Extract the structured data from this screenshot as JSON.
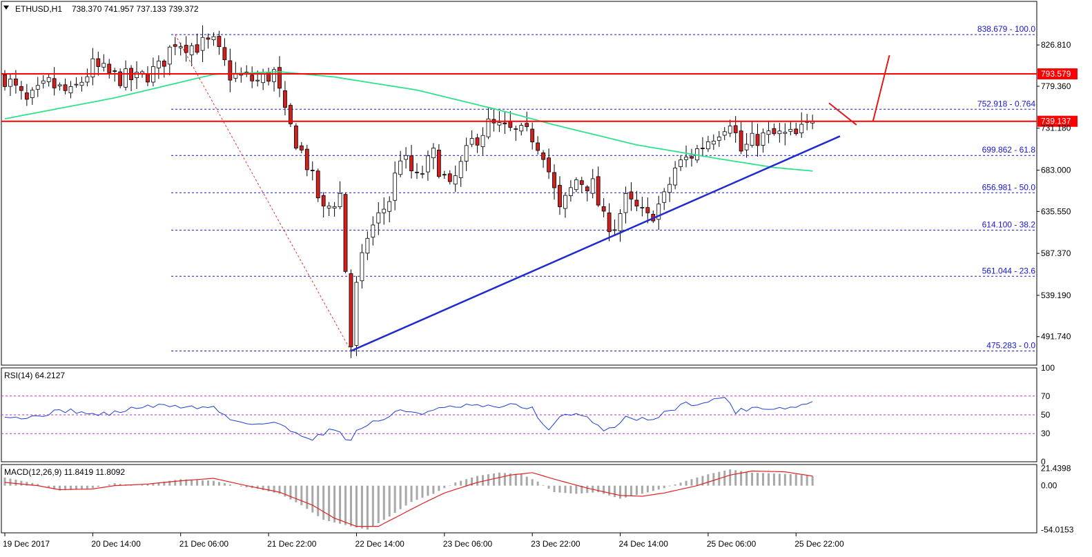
{
  "header": {
    "symbol": "ETHUSD,H1",
    "ohlc": "738.370 741.957 737.133 739.372",
    "menu_icon": "triangle-down-icon"
  },
  "colors": {
    "bull": "#ffffff",
    "bear": "#d41f1f",
    "wick": "#000000",
    "ma": "#2ee28a",
    "trendline": "#1f2bd1",
    "resistance": "#ff0000",
    "fib": "#1515d6",
    "rsi": "#1c3fd6",
    "macd_signal": "#e02020",
    "macd_hist": "#a8a8a8",
    "label_bg": "#ff0000"
  },
  "price_axis": {
    "ticks": [
      {
        "value": 826.81,
        "label": "826.810"
      },
      {
        "value": 779.36,
        "label": "779.360"
      },
      {
        "value": 731.18,
        "label": "731.180"
      },
      {
        "value": 683.0,
        "label": "683.000"
      },
      {
        "value": 635.55,
        "label": "635.550"
      },
      {
        "value": 587.37,
        "label": "587.370"
      },
      {
        "value": 539.19,
        "label": "539.190"
      },
      {
        "value": 491.74,
        "label": "491.740"
      }
    ],
    "range": [
      459,
      861
    ]
  },
  "fib_levels": [
    {
      "price": 838.679,
      "label": "838.679 - 100.0"
    },
    {
      "price": 752.918,
      "label": "752.918 - 0.764"
    },
    {
      "price": 699.862,
      "label": "699.862 - 61.8"
    },
    {
      "price": 656.981,
      "label": "656.981 - 50.0"
    },
    {
      "price": 614.1,
      "label": "614.100 - 38.2"
    },
    {
      "price": 561.044,
      "label": "561.044 - 23.6"
    },
    {
      "price": 475.283,
      "label": "475.283 - 0.0"
    }
  ],
  "resistance_lines": [
    {
      "price": 793.579,
      "label": "793.579"
    },
    {
      "price": 739.137,
      "label": "739.137"
    }
  ],
  "time_axis": {
    "labels": [
      "19 Dec 2017",
      "20 Dec 14:00",
      "21 Dec 06:00",
      "21 Dec 22:00",
      "22 Dec 14:00",
      "23 Dec 06:00",
      "23 Dec 22:00",
      "24 Dec 14:00",
      "25 Dec 06:00",
      "25 Dec 22:00"
    ],
    "label_bars": [
      0,
      16,
      32,
      48,
      64,
      80,
      96,
      112,
      128,
      144
    ]
  },
  "chart_data": [
    {
      "type": "candlestick",
      "title": "ETHUSD,H1",
      "bars_count": 148,
      "anchors": [
        [
          0,
          790
        ],
        [
          4,
          760
        ],
        [
          8,
          782
        ],
        [
          12,
          770
        ],
        [
          16,
          802
        ],
        [
          20,
          790
        ],
        [
          24,
          787
        ],
        [
          28,
          800
        ],
        [
          31,
          832
        ],
        [
          34,
          826
        ],
        [
          38,
          828
        ],
        [
          41,
          793
        ],
        [
          46,
          785
        ],
        [
          49,
          795
        ],
        [
          51,
          745
        ],
        [
          55,
          690
        ],
        [
          58,
          635
        ],
        [
          61,
          655
        ],
        [
          63,
          482
        ],
        [
          64,
          548
        ],
        [
          66,
          608
        ],
        [
          70,
          650
        ],
        [
          72,
          700
        ],
        [
          75,
          672
        ],
        [
          78,
          700
        ],
        [
          81,
          660
        ],
        [
          85,
          715
        ],
        [
          88,
          735
        ],
        [
          92,
          727
        ],
        [
          96,
          722
        ],
        [
          98,
          705
        ],
        [
          101,
          635
        ],
        [
          104,
          672
        ],
        [
          107,
          665
        ],
        [
          109,
          625
        ],
        [
          111,
          620
        ],
        [
          113,
          648
        ],
        [
          117,
          627
        ],
        [
          120,
          650
        ],
        [
          122,
          685
        ],
        [
          126,
          706
        ],
        [
          130,
          730
        ],
        [
          132,
          742
        ],
        [
          134,
          705
        ],
        [
          137,
          720
        ],
        [
          140,
          723
        ],
        [
          144,
          722
        ],
        [
          147,
          739
        ]
      ],
      "moving_average": {
        "name": "",
        "points": [
          [
            0,
            742
          ],
          [
            20,
            766
          ],
          [
            38,
            793
          ],
          [
            50,
            796
          ],
          [
            60,
            790
          ],
          [
            75,
            775
          ],
          [
            90,
            752
          ],
          [
            100,
            735
          ],
          [
            115,
            712
          ],
          [
            130,
            696
          ],
          [
            140,
            686
          ],
          [
            147,
            682
          ]
        ]
      },
      "trendline": {
        "from": [
          63,
          475.283
        ],
        "to": [
          152,
          722
        ]
      },
      "dashed_swing": {
        "from": [
          31,
          838.679
        ],
        "to": [
          63,
          475.283
        ]
      },
      "projection": [
        {
          "from": [
            150,
            760
          ],
          "to": [
            155,
            735
          ]
        },
        {
          "from": [
            158,
            739
          ],
          "to": [
            161,
            815
          ]
        }
      ]
    },
    {
      "type": "line",
      "title": "RSI(14) 64.2127",
      "ylim": [
        0,
        100
      ],
      "ticks": [
        {
          "value": 100,
          "label": "100"
        },
        {
          "value": 70,
          "label": "70"
        },
        {
          "value": 50,
          "label": "50"
        },
        {
          "value": 30,
          "label": "30"
        },
        {
          "value": 0,
          "label": "0"
        }
      ],
      "levels": [
        70,
        50,
        30
      ],
      "anchors": [
        [
          0,
          50
        ],
        [
          4,
          46
        ],
        [
          8,
          52
        ],
        [
          12,
          55
        ],
        [
          16,
          50
        ],
        [
          20,
          52
        ],
        [
          24,
          58
        ],
        [
          30,
          60
        ],
        [
          34,
          58
        ],
        [
          38,
          58
        ],
        [
          41,
          45
        ],
        [
          46,
          40
        ],
        [
          49,
          42
        ],
        [
          52,
          33
        ],
        [
          56,
          25
        ],
        [
          58,
          30
        ],
        [
          60,
          36
        ],
        [
          63,
          21
        ],
        [
          64,
          33
        ],
        [
          66,
          40
        ],
        [
          70,
          48
        ],
        [
          72,
          55
        ],
        [
          76,
          52
        ],
        [
          80,
          57
        ],
        [
          85,
          60
        ],
        [
          88,
          58
        ],
        [
          92,
          60
        ],
        [
          96,
          57
        ],
        [
          99,
          32
        ],
        [
          101,
          48
        ],
        [
          104,
          50
        ],
        [
          107,
          44
        ],
        [
          109,
          33
        ],
        [
          111,
          38
        ],
        [
          113,
          48
        ],
        [
          117,
          44
        ],
        [
          120,
          52
        ],
        [
          124,
          62
        ],
        [
          128,
          63
        ],
        [
          131,
          70
        ],
        [
          133,
          53
        ],
        [
          136,
          58
        ],
        [
          140,
          57
        ],
        [
          144,
          58
        ],
        [
          147,
          64.2127
        ]
      ]
    },
    {
      "type": "bar",
      "title": "MACD(12,26,9) 11.8419 11.8092",
      "ylim": [
        -58,
        26
      ],
      "ticks": [
        {
          "value": 21.4398,
          "label": "21.4398"
        },
        {
          "value": 0.0,
          "label": "0.00"
        },
        {
          "value": -54.0153,
          "label": "-54.0153"
        }
      ],
      "histogram_anchors": [
        [
          0,
          10
        ],
        [
          6,
          2
        ],
        [
          10,
          -6
        ],
        [
          16,
          -3
        ],
        [
          20,
          3
        ],
        [
          24,
          0
        ],
        [
          28,
          4
        ],
        [
          32,
          8
        ],
        [
          38,
          6
        ],
        [
          42,
          0
        ],
        [
          46,
          -4
        ],
        [
          50,
          -10
        ],
        [
          54,
          -24
        ],
        [
          58,
          -42
        ],
        [
          63,
          -50
        ],
        [
          66,
          -54
        ],
        [
          70,
          -38
        ],
        [
          74,
          -20
        ],
        [
          78,
          -10
        ],
        [
          82,
          4
        ],
        [
          86,
          12
        ],
        [
          90,
          16
        ],
        [
          94,
          14
        ],
        [
          97,
          5
        ],
        [
          100,
          -8
        ],
        [
          104,
          -10
        ],
        [
          108,
          -8
        ],
        [
          112,
          -16
        ],
        [
          116,
          -10
        ],
        [
          120,
          -3
        ],
        [
          124,
          6
        ],
        [
          128,
          14
        ],
        [
          132,
          20
        ],
        [
          136,
          16
        ],
        [
          140,
          15
        ],
        [
          144,
          14
        ],
        [
          147,
          11.8419
        ]
      ],
      "signal_anchors": [
        [
          0,
          4
        ],
        [
          6,
          0
        ],
        [
          10,
          -5
        ],
        [
          16,
          -4
        ],
        [
          20,
          0
        ],
        [
          26,
          2
        ],
        [
          32,
          6
        ],
        [
          38,
          9
        ],
        [
          44,
          0
        ],
        [
          50,
          -8
        ],
        [
          56,
          -24
        ],
        [
          60,
          -40
        ],
        [
          64,
          -50
        ],
        [
          68,
          -50
        ],
        [
          72,
          -36
        ],
        [
          76,
          -22
        ],
        [
          80,
          -9
        ],
        [
          86,
          4
        ],
        [
          92,
          13
        ],
        [
          96,
          16
        ],
        [
          100,
          8
        ],
        [
          106,
          -3
        ],
        [
          112,
          -12
        ],
        [
          116,
          -13
        ],
        [
          120,
          -9
        ],
        [
          126,
          0
        ],
        [
          132,
          13
        ],
        [
          136,
          18
        ],
        [
          142,
          17
        ],
        [
          147,
          11.8092
        ]
      ]
    }
  ]
}
